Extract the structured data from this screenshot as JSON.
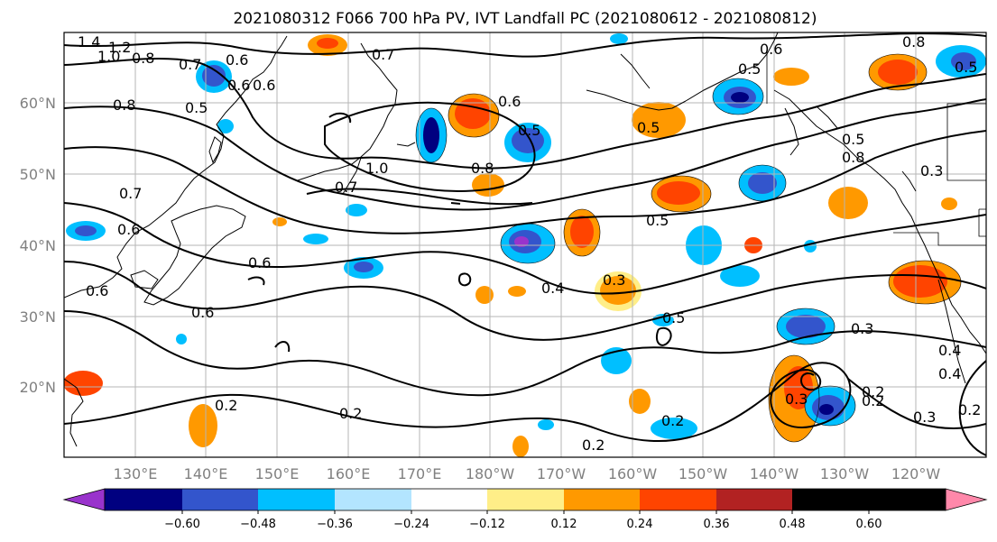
{
  "title": "2021080312 F066 700 hPa PV, IVT Landfall PC (2021080612 - 2021080812)",
  "lat_labels": [
    "60°N",
    "50°N",
    "40°N",
    "30°N",
    "20°N"
  ],
  "lon_labels": [
    "130°E",
    "140°E",
    "150°E",
    "160°E",
    "170°E",
    "180°W",
    "170°W",
    "160°W",
    "150°W",
    "140°W",
    "130°W",
    "120°W"
  ],
  "colorbar": {
    "colors": [
      "#9933cc",
      "#000080",
      "#3355cc",
      "#00bfff",
      "#b3e5ff",
      "#ffffff",
      "#ffee88",
      "#ff9900",
      "#ff4400",
      "#b22222",
      "#ff88aa"
    ],
    "tick_labels": [
      "−0.60",
      "−0.48",
      "−0.36",
      "−0.24",
      "−0.12",
      "0.12",
      "0.24",
      "0.36",
      "0.48",
      "0.60"
    ]
  },
  "contour_labels": [
    "1.4",
    "1.2",
    "1.0",
    "0.8",
    "0.7",
    "0.6",
    "0.8",
    "0.5",
    "0.6",
    "0.7",
    "0.6",
    "0.5",
    "0.8",
    "1.0",
    "0.7",
    "0.6",
    "0.5",
    "0.8",
    "0.6",
    "0.5",
    "0.4",
    "0.3",
    "0.3",
    "0.4",
    "0.2",
    "0.2",
    "0.2",
    "0.3",
    "0.2",
    "0.2",
    "0.5",
    "0.3",
    "0.4",
    "0.2",
    "0.6",
    "0.6",
    "0.6",
    "0.7",
    "0.5",
    "0.5",
    "0.6",
    "0.2",
    "0.3",
    "0.8",
    "0.5"
  ]
}
